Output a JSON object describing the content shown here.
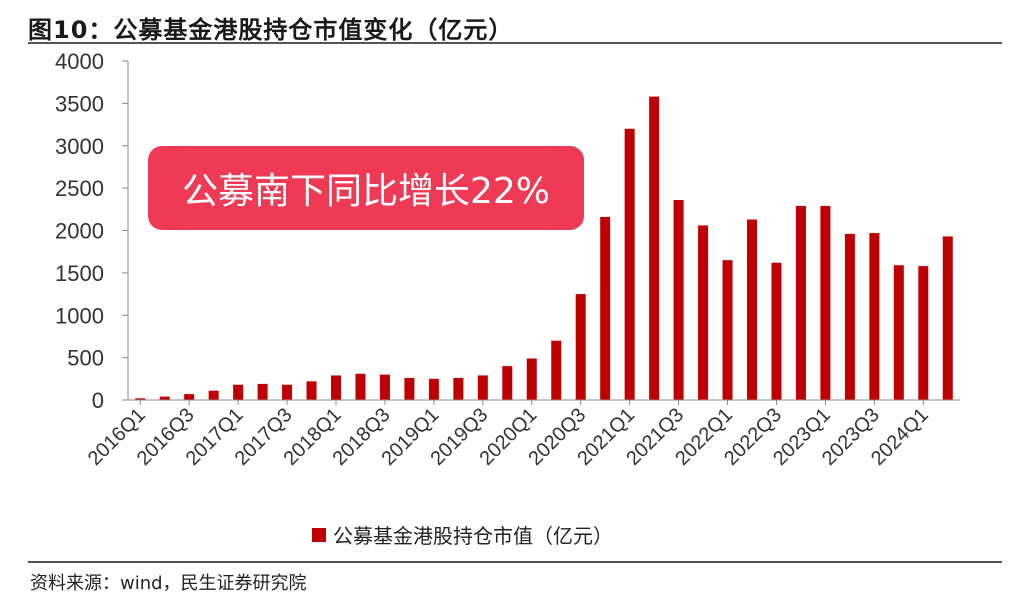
{
  "header": {
    "title": "图10：公募基金港股持仓市值变化（亿元）"
  },
  "source": "资料来源：wind，民生证券研究院",
  "callout": "公募南下同比增长22%",
  "colors": {
    "bar": "#c00000",
    "callout": "#ef3a55"
  },
  "chart_data": {
    "type": "bar",
    "categories": [
      "2016Q1",
      "2016Q2",
      "2016Q3",
      "2016Q4",
      "2017Q1",
      "2017Q2",
      "2017Q3",
      "2017Q4",
      "2018Q1",
      "2018Q2",
      "2018Q3",
      "2018Q4",
      "2019Q1",
      "2019Q2",
      "2019Q3",
      "2019Q4",
      "2020Q1",
      "2020Q2",
      "2020Q3",
      "2020Q4",
      "2021Q1",
      "2021Q2",
      "2021Q3",
      "2021Q4",
      "2022Q1",
      "2022Q2",
      "2022Q3",
      "2022Q4",
      "2023Q1",
      "2023Q2",
      "2023Q3",
      "2023Q4",
      "2024Q1",
      "2024Q2"
    ],
    "tick_labels": [
      "2016Q1",
      "",
      "2016Q3",
      "",
      "2017Q1",
      "",
      "2017Q3",
      "",
      "2018Q1",
      "",
      "2018Q3",
      "",
      "2019Q1",
      "",
      "2019Q3",
      "",
      "2020Q1",
      "",
      "2020Q3",
      "",
      "2021Q1",
      "",
      "2021Q3",
      "",
      "2022Q1",
      "",
      "2022Q3",
      "",
      "2023Q1",
      "",
      "2023Q3",
      "",
      "2024Q1",
      ""
    ],
    "series": [
      {
        "name": "公募基金港股持仓市值（亿元）",
        "values": [
          20,
          40,
          70,
          110,
          180,
          190,
          180,
          220,
          290,
          310,
          300,
          260,
          250,
          260,
          290,
          400,
          490,
          700,
          1250,
          2160,
          3200,
          3580,
          2360,
          2060,
          1650,
          2130,
          1620,
          2290,
          2290,
          1960,
          1970,
          1590,
          1580,
          1930
        ]
      }
    ],
    "title": "",
    "xlabel": "",
    "ylabel": "",
    "ylim": [
      0,
      4000
    ],
    "yticks": [
      0,
      500,
      1000,
      1500,
      2000,
      2500,
      3000,
      3500,
      4000
    ],
    "grid": false,
    "legend": "bottom-center"
  }
}
